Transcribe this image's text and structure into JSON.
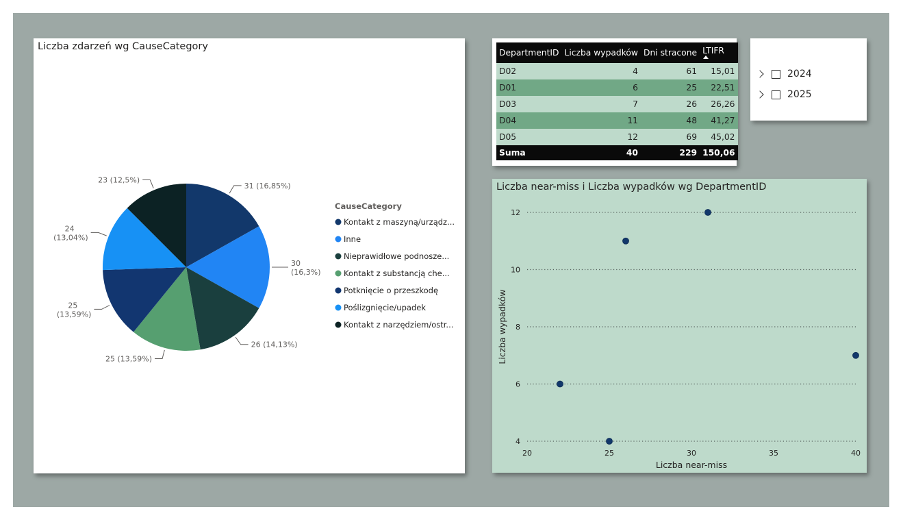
{
  "pie_chart": {
    "title": "Liczba zdarzeń wg CauseCategory",
    "legend_title": "CauseCategory",
    "label_color": "#605e5c"
  },
  "table": {
    "headers": [
      "DepartmentID",
      "Liczba wypadków",
      "Dni stracone",
      "LTIFR"
    ],
    "rows": [
      [
        "D02",
        "4",
        "61",
        "15,01"
      ],
      [
        "D01",
        "6",
        "25",
        "22,51"
      ],
      [
        "D03",
        "7",
        "26",
        "26,26"
      ],
      [
        "D04",
        "11",
        "48",
        "41,27"
      ],
      [
        "D05",
        "12",
        "69",
        "45,02"
      ]
    ],
    "total": [
      "Suma",
      "40",
      "229",
      "150,06"
    ],
    "sorted_column": "LTIFR",
    "row_colors": [
      "#bedacb",
      "#71a886"
    ]
  },
  "slicer": {
    "items": [
      "2024",
      "2025"
    ]
  },
  "scatter_chart": {
    "title": "Liczba near-miss i Liczba wypadków wg DepartmentID"
  },
  "chart_data": [
    {
      "type": "pie",
      "title": "Liczba zdarzeń wg CauseCategory",
      "legend_title": "CauseCategory",
      "legend_position": "right",
      "slices": [
        {
          "name": "Kontakt z maszyną/urządz...",
          "value": 31,
          "label": "31 (16,85%)",
          "color": "#12386b"
        },
        {
          "name": "Inne",
          "value": 30,
          "label": "30 (16,3%)",
          "color": "#2185f4"
        },
        {
          "name": "Nieprawidłowe podnosze...",
          "value": 26,
          "label": "26 (14,13%)",
          "color": "#1a3f3e"
        },
        {
          "name": "Kontakt z substancją che...",
          "value": 25,
          "label": "25 (13,59%)",
          "color": "#569f70"
        },
        {
          "name": "Potknięcie o przeszkodę",
          "value": 25,
          "label": "25 (13,59%)",
          "color": "#123670"
        },
        {
          "name": "Poślizgnięcie/upadek",
          "value": 24,
          "label": "24 (13,04%)",
          "color": "#1791f5"
        },
        {
          "name": "Kontakt z narzędziem/ostr...",
          "value": 23,
          "label": "23 (12,5%)",
          "color": "#0c2224"
        }
      ]
    },
    {
      "type": "scatter",
      "title": "Liczba near-miss i Liczba wypadków wg DepartmentID",
      "xlabel": "Liczba near-miss",
      "ylabel": "Liczba wypadków",
      "xlim": [
        20,
        40
      ],
      "ylim": [
        4,
        12
      ],
      "xticks": [
        20,
        25,
        30,
        35,
        40
      ],
      "yticks": [
        4,
        6,
        8,
        10,
        12
      ],
      "grid": "horizontal-dotted",
      "point_color": "#12386b",
      "points": [
        {
          "x": 22,
          "y": 6
        },
        {
          "x": 25,
          "y": 4
        },
        {
          "x": 26,
          "y": 11
        },
        {
          "x": 31,
          "y": 12
        },
        {
          "x": 40,
          "y": 7
        }
      ]
    }
  ]
}
